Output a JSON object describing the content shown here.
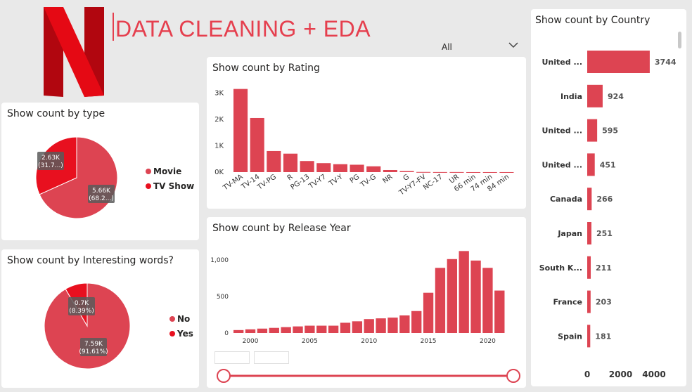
{
  "header": {
    "title": "DATA CLEANING + EDA",
    "logo_name": "netflix-logo-icon"
  },
  "slicer": {
    "selected": "All",
    "icon": "chevron-down-icon"
  },
  "colors": {
    "accent": "#DD4452",
    "secondary": "#E8101F",
    "title": "#E53F4E"
  },
  "type_card": {
    "title": "Show count by type",
    "legend": [
      "Movie",
      "TV Show"
    ],
    "labels": [
      {
        "value": "5.66K",
        "pct": "(68.2...)"
      },
      {
        "value": "2.63K",
        "pct": "(31.7...)"
      }
    ]
  },
  "words_card": {
    "title": "Show count by Interesting words?",
    "legend": [
      "No",
      "Yes"
    ],
    "labels": [
      {
        "value": "7.59K",
        "pct": "(91.61%)"
      },
      {
        "value": "0.7K",
        "pct": "(8.39%)"
      }
    ]
  },
  "rating_card": {
    "title": "Show count by Rating"
  },
  "year_card": {
    "title": "Show count by Release Year"
  },
  "country_card": {
    "title": "Show count by Country"
  },
  "chart_data": [
    {
      "type": "pie",
      "title": "Show count by type",
      "categories": [
        "Movie",
        "TV Show"
      ],
      "values": [
        5660,
        2630
      ],
      "percent": [
        68.2,
        31.7
      ],
      "colors": [
        "#DD4452",
        "#E8101F"
      ],
      "legend": "right"
    },
    {
      "type": "pie",
      "title": "Show count by Interesting words?",
      "categories": [
        "No",
        "Yes"
      ],
      "values": [
        7590,
        700
      ],
      "percent": [
        91.61,
        8.39
      ],
      "colors": [
        "#DD4452",
        "#E8101F"
      ],
      "legend": "right"
    },
    {
      "type": "bar",
      "title": "Show count by Rating",
      "categories": [
        "TV-MA",
        "TV-14",
        "TV-PG",
        "R",
        "PG-13",
        "TV-Y7",
        "TV-Y",
        "PG",
        "TV-G",
        "NR",
        "G",
        "TV-Y7-FV",
        "NC-17",
        "UR",
        "66 min",
        "74 min",
        "84 min"
      ],
      "values": [
        3150,
        2050,
        800,
        700,
        420,
        340,
        300,
        280,
        220,
        80,
        40,
        6,
        3,
        3,
        1,
        1,
        1
      ],
      "ylim": [
        0,
        3300
      ],
      "y_ticks": [
        "0K",
        "1K",
        "2K",
        "3K"
      ],
      "grid": false
    },
    {
      "type": "bar",
      "title": "Show count by Release Year",
      "categories": [
        1999,
        2000,
        2001,
        2002,
        2003,
        2004,
        2005,
        2006,
        2007,
        2008,
        2009,
        2010,
        2011,
        2012,
        2013,
        2014,
        2015,
        2016,
        2017,
        2018,
        2019,
        2020,
        2021
      ],
      "values": [
        40,
        50,
        60,
        70,
        80,
        90,
        100,
        100,
        100,
        140,
        160,
        190,
        200,
        210,
        240,
        300,
        550,
        890,
        1010,
        1120,
        990,
        890,
        580
      ],
      "x_ticks": [
        "2000",
        "2005",
        "2010",
        "2015",
        "2020"
      ],
      "y_ticks": [
        "0",
        "500",
        "1,000"
      ],
      "ylim": [
        0,
        1200
      ],
      "grid": false
    },
    {
      "type": "bar",
      "orientation": "horizontal",
      "title": "Show count by Country",
      "categories": [
        "United ...",
        "India",
        "United ...",
        "United ...",
        "Canada",
        "Japan",
        "South K...",
        "France",
        "Spain"
      ],
      "values": [
        3744,
        924,
        595,
        451,
        266,
        251,
        211,
        203,
        181
      ],
      "x_ticks": [
        "0",
        "2000",
        "4000"
      ],
      "xlim": [
        0,
        4000
      ],
      "grid": false
    }
  ]
}
